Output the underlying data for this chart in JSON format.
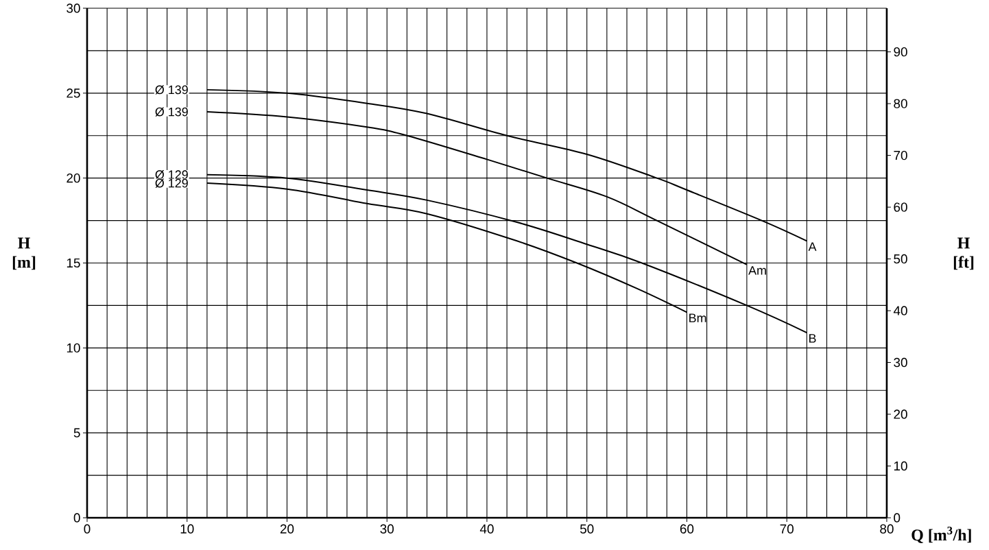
{
  "chart_data": {
    "type": "line",
    "xlabel": "Q [m$^{3}$/h]",
    "ylabel": "H [m]",
    "y2label": "H [ft]",
    "xlim": [
      0,
      80
    ],
    "ylim": [
      0,
      30
    ],
    "y2lim": [
      0,
      98.43
    ],
    "xticks": [
      0,
      10,
      20,
      30,
      40,
      50,
      60,
      70,
      80
    ],
    "yticks": [
      0,
      5,
      10,
      15,
      20,
      25,
      30
    ],
    "y2ticks": [
      0,
      10,
      20,
      30,
      40,
      50,
      60,
      70,
      80,
      90
    ],
    "grid": true,
    "series": [
      {
        "name": "A",
        "color": "#000000",
        "x": [
          12,
          20,
          28,
          34,
          42,
          50,
          57,
          60,
          67.5,
          72
        ],
        "values": [
          25.2,
          25.0,
          24.4,
          23.8,
          22.5,
          21.4,
          20.0,
          19.3,
          17.5,
          16.3
        ]
      },
      {
        "name": "Am",
        "color": "#000000",
        "x": [
          12,
          20,
          28,
          32,
          40,
          46,
          52,
          57,
          66
        ],
        "values": [
          23.9,
          23.6,
          23.0,
          22.5,
          21.1,
          20.0,
          18.9,
          17.5,
          14.9
        ]
      },
      {
        "name": "B",
        "color": "#000000",
        "x": [
          12,
          20,
          28,
          34,
          43,
          50,
          55.5,
          66,
          72
        ],
        "values": [
          20.2,
          20.0,
          19.3,
          18.7,
          17.4,
          16.1,
          15.0,
          12.5,
          10.9
        ]
      },
      {
        "name": "Bm",
        "color": "#000000",
        "x": [
          12,
          20,
          28,
          34,
          43,
          49,
          55,
          60
        ],
        "values": [
          19.7,
          19.35,
          18.5,
          17.9,
          16.3,
          15.0,
          13.5,
          12.1
        ]
      }
    ],
    "annotations": [
      "Ø 139",
      "Ø 139",
      "Ø 129",
      "Ø 129"
    ]
  }
}
